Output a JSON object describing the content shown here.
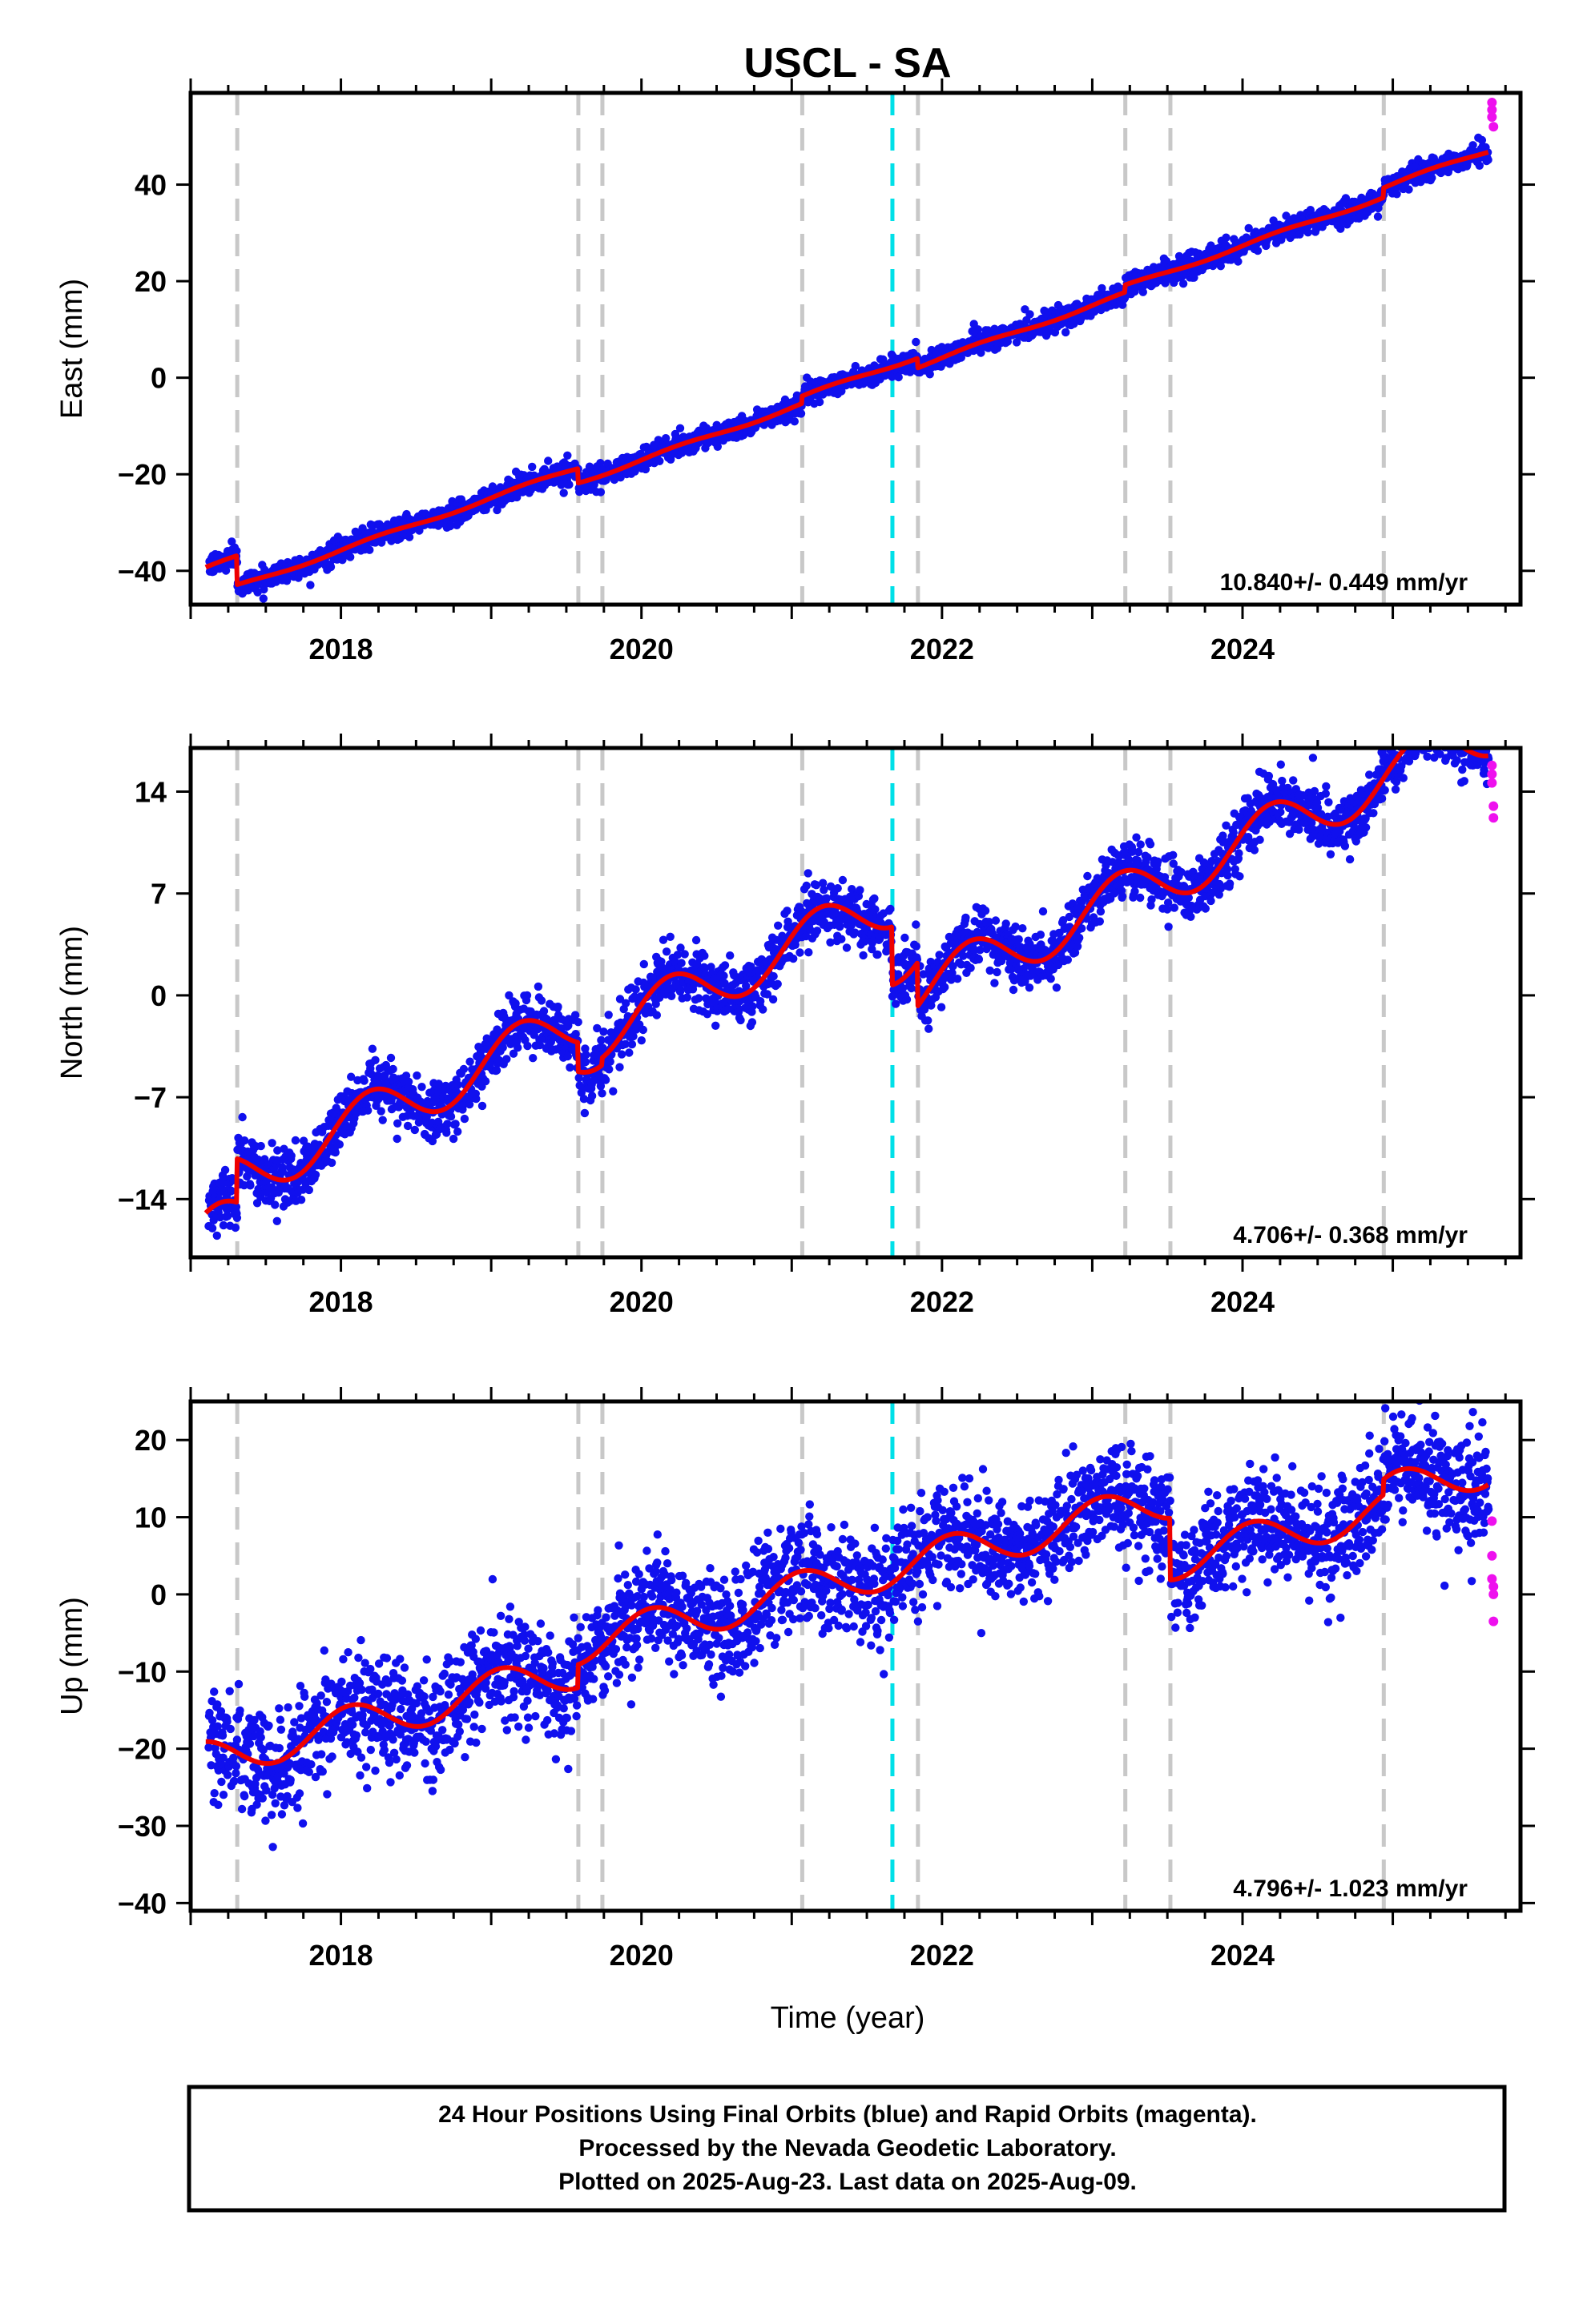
{
  "title": "USCL - SA",
  "xlabel": "Time (year)",
  "footer": {
    "line1": "24 Hour Positions Using Final Orbits (blue) and Rapid Orbits (magenta).",
    "line2": "Processed by the Nevada Geodetic Laboratory.",
    "line3": "Plotted on 2025-Aug-23. Last data on 2025-Aug-09."
  },
  "colors": {
    "final": "#1010ee",
    "rapid": "#ee10ee",
    "model": "#ee0000",
    "offset_gray": "#c8c8c8",
    "offset_cyan": "#00e0e8",
    "frame": "#000000"
  },
  "chart_data": [
    {
      "type": "scatter",
      "component": "east",
      "ylabel": "East (mm)",
      "xlim": [
        2017.0,
        2025.85
      ],
      "ylim": [
        -47,
        59
      ],
      "xticks": [
        2018,
        2020,
        2022,
        2024
      ],
      "yticks": [
        -40,
        -20,
        0,
        20,
        40
      ],
      "rate_text": "10.840+/- 0.449 mm/yr",
      "rate": 10.84,
      "offset_epochs_gray": [
        2017.31,
        2019.58,
        2019.74,
        2021.07,
        2021.84,
        2023.22,
        2023.52,
        2024.94
      ],
      "offset_epochs_cyan": [
        2021.67
      ],
      "model": {
        "t0": 2017.1,
        "v0": -39.5,
        "annual_amp": 0.4,
        "annual_phase": 0.0,
        "jumps": [
          {
            "t": 2017.31,
            "dy": -6.0
          },
          {
            "t": 2019.58,
            "dy": -3.0
          },
          {
            "t": 2021.07,
            "dy": 1.5
          },
          {
            "t": 2021.84,
            "dy": -2.0
          },
          {
            "t": 2023.22,
            "dy": 1.5
          },
          {
            "t": 2024.94,
            "dy": 2.0
          }
        ],
        "noise": 1.1
      },
      "rapid_points": [
        {
          "t": 2025.66,
          "y": 57.0
        },
        {
          "t": 2025.66,
          "y": 55.5
        },
        {
          "t": 2025.66,
          "y": 54.0
        },
        {
          "t": 2025.67,
          "y": 52.0
        }
      ]
    },
    {
      "type": "scatter",
      "component": "north",
      "ylabel": "North (mm)",
      "xlim": [
        2017.0,
        2025.85
      ],
      "ylim": [
        -18,
        17
      ],
      "xticks": [
        2018,
        2020,
        2022,
        2024
      ],
      "yticks": [
        -14,
        -7,
        0,
        7,
        14
      ],
      "rate_text": "4.706+/- 0.368 mm/yr",
      "rate": 4.706,
      "offset_epochs_gray": [
        2017.31,
        2019.58,
        2019.74,
        2021.07,
        2021.84,
        2023.22,
        2023.52,
        2024.94
      ],
      "offset_epochs_cyan": [
        2021.67
      ],
      "model": {
        "t0": 2017.1,
        "v0": -16.5,
        "annual_amp": 1.8,
        "annual_phase": 0.4,
        "jumps": [
          {
            "t": 2017.31,
            "dy": 3.0
          },
          {
            "t": 2019.58,
            "dy": -2.0
          },
          {
            "t": 2019.74,
            "dy": 0.5
          },
          {
            "t": 2021.67,
            "dy": -4.0
          },
          {
            "t": 2021.84,
            "dy": -3.0
          }
        ],
        "noise": 1.0
      },
      "rapid_points": [
        {
          "t": 2025.66,
          "y": 15.8
        },
        {
          "t": 2025.66,
          "y": 15.2
        },
        {
          "t": 2025.66,
          "y": 14.6
        },
        {
          "t": 2025.67,
          "y": 13.0
        },
        {
          "t": 2025.67,
          "y": 12.2
        }
      ]
    },
    {
      "type": "scatter",
      "component": "up",
      "ylabel": "Up (mm)",
      "xlim": [
        2017.0,
        2025.85
      ],
      "ylim": [
        -41,
        25
      ],
      "xticks": [
        2018,
        2020,
        2022,
        2024
      ],
      "yticks": [
        -40,
        -30,
        -20,
        -10,
        0,
        10,
        20
      ],
      "rate_text": "4.796+/- 1.023 mm/yr",
      "rate": 4.796,
      "offset_epochs_gray": [
        2017.31,
        2019.58,
        2019.74,
        2021.07,
        2021.84,
        2023.22,
        2023.52,
        2024.94
      ],
      "offset_epochs_cyan": [
        2021.67
      ],
      "model": {
        "t0": 2017.1,
        "v0": -21.5,
        "annual_amp": 2.5,
        "annual_phase": 1.2,
        "jumps": [
          {
            "t": 2019.58,
            "dy": 3.0
          },
          {
            "t": 2023.52,
            "dy": -8.0
          },
          {
            "t": 2024.94,
            "dy": 2.0
          }
        ],
        "noise": 3.5
      },
      "rapid_points": [
        {
          "t": 2025.66,
          "y": 9.5
        },
        {
          "t": 2025.66,
          "y": 5.0
        },
        {
          "t": 2025.66,
          "y": 2.0
        },
        {
          "t": 2025.67,
          "y": 1.0
        },
        {
          "t": 2025.67,
          "y": 0.0
        },
        {
          "t": 2025.67,
          "y": -3.5
        }
      ]
    }
  ]
}
